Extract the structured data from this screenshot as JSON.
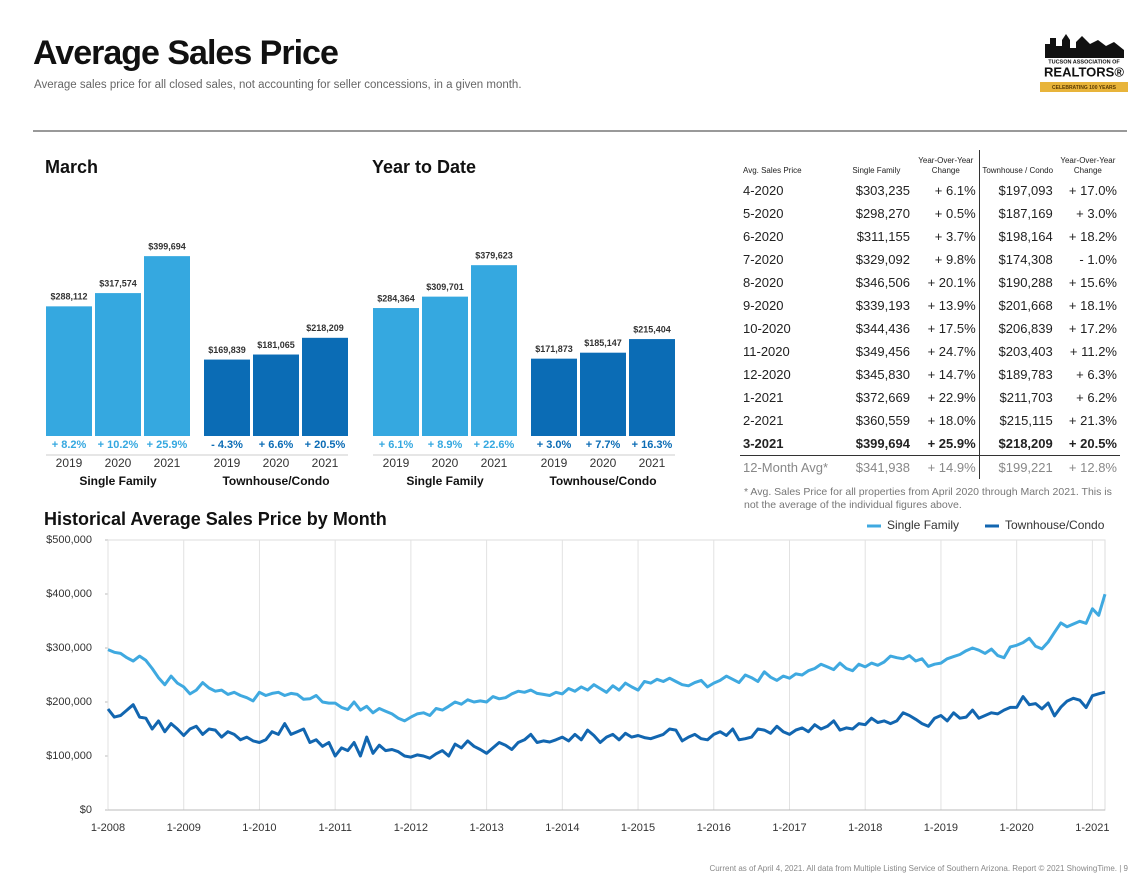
{
  "header": {
    "title": "Average Sales Price",
    "subtitle": "Average sales price for all closed sales, not accounting for seller concessions, in a given month."
  },
  "logo": {
    "line1": "TUCSON ASSOCIATION OF",
    "line2": "REALTORS®",
    "line3": "CELEBRATING 100 YEARS"
  },
  "chart_data": [
    {
      "type": "bar",
      "title": "March",
      "categories": [
        "2019",
        "2020",
        "2021"
      ],
      "ylim": [
        0,
        400000
      ],
      "series": [
        {
          "name": "Single Family",
          "color": "#35a8e0",
          "values": [
            288112,
            317574,
            399694
          ],
          "value_labels": [
            "$288,112",
            "$317,574",
            "$399,694"
          ],
          "change_labels": [
            "+ 8.2%",
            "+ 10.2%",
            "+ 25.9%"
          ]
        },
        {
          "name": "Townhouse/Condo",
          "color": "#0b6cb5",
          "values": [
            169839,
            181065,
            218209
          ],
          "value_labels": [
            "$169,839",
            "$181,065",
            "$218,209"
          ],
          "change_labels": [
            "- 4.3%",
            "+ 6.6%",
            "+ 20.5%"
          ]
        }
      ]
    },
    {
      "type": "bar",
      "title": "Year to Date",
      "categories": [
        "2019",
        "2020",
        "2021"
      ],
      "ylim": [
        0,
        400000
      ],
      "series": [
        {
          "name": "Single Family",
          "color": "#35a8e0",
          "values": [
            284364,
            309701,
            379623
          ],
          "value_labels": [
            "$284,364",
            "$309,701",
            "$379,623"
          ],
          "change_labels": [
            "+ 6.1%",
            "+ 8.9%",
            "+ 22.6%"
          ]
        },
        {
          "name": "Townhouse/Condo",
          "color": "#0b6cb5",
          "values": [
            171873,
            185147,
            215404
          ],
          "value_labels": [
            "$171,873",
            "$185,147",
            "$215,404"
          ],
          "change_labels": [
            "+ 3.0%",
            "+ 7.7%",
            "+ 16.3%"
          ]
        }
      ]
    },
    {
      "type": "line",
      "title": "Historical Average Sales Price by Month",
      "grid": "x",
      "legend": "top-right",
      "x": [
        "1-2008",
        "2-2008",
        "3-2008",
        "4-2008",
        "5-2008",
        "6-2008",
        "7-2008",
        "8-2008",
        "9-2008",
        "10-2008",
        "11-2008",
        "12-2008",
        "1-2009",
        "2-2009",
        "3-2009",
        "4-2009",
        "5-2009",
        "6-2009",
        "7-2009",
        "8-2009",
        "9-2009",
        "10-2009",
        "11-2009",
        "12-2009",
        "1-2010",
        "2-2010",
        "3-2010",
        "4-2010",
        "5-2010",
        "6-2010",
        "7-2010",
        "8-2010",
        "9-2010",
        "10-2010",
        "11-2010",
        "12-2010",
        "1-2011",
        "2-2011",
        "3-2011",
        "4-2011",
        "5-2011",
        "6-2011",
        "7-2011",
        "8-2011",
        "9-2011",
        "10-2011",
        "11-2011",
        "12-2011",
        "1-2012",
        "2-2012",
        "3-2012",
        "4-2012",
        "5-2012",
        "6-2012",
        "7-2012",
        "8-2012",
        "9-2012",
        "10-2012",
        "11-2012",
        "12-2012",
        "1-2013",
        "2-2013",
        "3-2013",
        "4-2013",
        "5-2013",
        "6-2013",
        "7-2013",
        "8-2013",
        "9-2013",
        "10-2013",
        "11-2013",
        "12-2013",
        "1-2014",
        "2-2014",
        "3-2014",
        "4-2014",
        "5-2014",
        "6-2014",
        "7-2014",
        "8-2014",
        "9-2014",
        "10-2014",
        "11-2014",
        "12-2014",
        "1-2015",
        "2-2015",
        "3-2015",
        "4-2015",
        "5-2015",
        "6-2015",
        "7-2015",
        "8-2015",
        "9-2015",
        "10-2015",
        "11-2015",
        "12-2015",
        "1-2016",
        "2-2016",
        "3-2016",
        "4-2016",
        "5-2016",
        "6-2016",
        "7-2016",
        "8-2016",
        "9-2016",
        "10-2016",
        "11-2016",
        "12-2016",
        "1-2017",
        "2-2017",
        "3-2017",
        "4-2017",
        "5-2017",
        "6-2017",
        "7-2017",
        "8-2017",
        "9-2017",
        "10-2017",
        "11-2017",
        "12-2017",
        "1-2018",
        "2-2018",
        "3-2018",
        "4-2018",
        "5-2018",
        "6-2018",
        "7-2018",
        "8-2018",
        "9-2018",
        "10-2018",
        "11-2018",
        "12-2018",
        "1-2019",
        "2-2019",
        "3-2019",
        "4-2019",
        "5-2019",
        "6-2019",
        "7-2019",
        "8-2019",
        "9-2019",
        "10-2019",
        "11-2019",
        "12-2019",
        "1-2020",
        "2-2020",
        "3-2020",
        "4-2020",
        "5-2020",
        "6-2020",
        "7-2020",
        "8-2020",
        "9-2020",
        "10-2020",
        "11-2020",
        "12-2020",
        "1-2021",
        "2-2021",
        "3-2021"
      ],
      "xticks": [
        "1-2008",
        "1-2009",
        "1-2010",
        "1-2011",
        "1-2012",
        "1-2013",
        "1-2014",
        "1-2015",
        "1-2016",
        "1-2017",
        "1-2018",
        "1-2019",
        "1-2020",
        "1-2021"
      ],
      "ylim": [
        0,
        500000
      ],
      "yticks": [
        {
          "value": 0,
          "label": "$0"
        },
        {
          "value": 100000,
          "label": "$100,000"
        },
        {
          "value": 200000,
          "label": "$200,000"
        },
        {
          "value": 300000,
          "label": "$300,000"
        },
        {
          "value": 400000,
          "label": "$400,000"
        },
        {
          "value": 500000,
          "label": "$500,000"
        }
      ],
      "series": [
        {
          "name": "Single Family",
          "color": "#3fa9e0",
          "values": [
            297000,
            292000,
            290000,
            282000,
            276000,
            285000,
            277000,
            262000,
            245000,
            232000,
            248000,
            235000,
            228000,
            215000,
            222000,
            236000,
            226000,
            220000,
            222000,
            214000,
            218000,
            212000,
            208000,
            202000,
            218000,
            212000,
            216000,
            218000,
            212000,
            216000,
            214000,
            205000,
            206000,
            212000,
            200000,
            198000,
            198000,
            190000,
            186000,
            200000,
            185000,
            192000,
            180000,
            188000,
            183000,
            178000,
            170000,
            165000,
            172000,
            178000,
            180000,
            175000,
            188000,
            185000,
            192000,
            200000,
            196000,
            204000,
            200000,
            202000,
            200000,
            210000,
            206000,
            208000,
            215000,
            220000,
            218000,
            222000,
            216000,
            214000,
            212000,
            218000,
            215000,
            225000,
            220000,
            228000,
            222000,
            232000,
            225000,
            218000,
            230000,
            222000,
            235000,
            228000,
            222000,
            238000,
            235000,
            242000,
            238000,
            244000,
            238000,
            232000,
            230000,
            236000,
            240000,
            228000,
            235000,
            240000,
            248000,
            242000,
            236000,
            250000,
            245000,
            238000,
            256000,
            246000,
            240000,
            248000,
            244000,
            252000,
            250000,
            258000,
            262000,
            270000,
            265000,
            260000,
            272000,
            262000,
            258000,
            270000,
            265000,
            272000,
            268000,
            274000,
            285000,
            282000,
            280000,
            286000,
            276000,
            280000,
            266000,
            270000,
            272000,
            280000,
            284000,
            288000,
            295000,
            300000,
            296000,
            290000,
            298000,
            286000,
            282000,
            302000,
            305000,
            310000,
            318000,
            303235,
            298270,
            311155,
            329092,
            346506,
            339193,
            344436,
            349456,
            345830,
            372669,
            360559,
            399694
          ]
        },
        {
          "name": "Townhouse/Condo",
          "color": "#1266b0",
          "values": [
            187000,
            172000,
            175000,
            185000,
            195000,
            172000,
            170000,
            150000,
            165000,
            145000,
            160000,
            150000,
            138000,
            150000,
            155000,
            140000,
            150000,
            148000,
            135000,
            145000,
            140000,
            130000,
            135000,
            128000,
            125000,
            130000,
            145000,
            140000,
            160000,
            140000,
            145000,
            150000,
            125000,
            130000,
            118000,
            125000,
            100000,
            115000,
            110000,
            125000,
            100000,
            135000,
            105000,
            120000,
            110000,
            112000,
            108000,
            100000,
            98000,
            102000,
            100000,
            96000,
            104000,
            110000,
            100000,
            122000,
            115000,
            128000,
            118000,
            112000,
            105000,
            115000,
            125000,
            120000,
            112000,
            125000,
            130000,
            140000,
            125000,
            128000,
            126000,
            130000,
            135000,
            128000,
            140000,
            130000,
            148000,
            138000,
            125000,
            135000,
            140000,
            130000,
            142000,
            135000,
            138000,
            134000,
            132000,
            136000,
            140000,
            150000,
            148000,
            128000,
            135000,
            140000,
            132000,
            130000,
            140000,
            145000,
            138000,
            150000,
            130000,
            132000,
            135000,
            150000,
            148000,
            142000,
            155000,
            145000,
            140000,
            148000,
            152000,
            145000,
            158000,
            150000,
            155000,
            165000,
            148000,
            152000,
            150000,
            160000,
            158000,
            170000,
            162000,
            165000,
            160000,
            165000,
            180000,
            175000,
            168000,
            160000,
            155000,
            170000,
            175000,
            165000,
            180000,
            170000,
            172000,
            185000,
            170000,
            175000,
            180000,
            178000,
            185000,
            190000,
            190000,
            210000,
            195000,
            197093,
            187169,
            198164,
            174308,
            190288,
            201668,
            206839,
            203403,
            189783,
            211703,
            215115,
            218209
          ]
        }
      ]
    }
  ],
  "table": {
    "header": [
      "Avg. Sales Price",
      "Single Family",
      "Year-Over-Year Change",
      "Townhouse / Condo",
      "Year-Over-Year Change"
    ],
    "rows": [
      [
        "4-2020",
        "$303,235",
        "+ 6.1%",
        "$197,093",
        "+ 17.0%"
      ],
      [
        "5-2020",
        "$298,270",
        "+ 0.5%",
        "$187,169",
        "+ 3.0%"
      ],
      [
        "6-2020",
        "$311,155",
        "+ 3.7%",
        "$198,164",
        "+ 18.2%"
      ],
      [
        "7-2020",
        "$329,092",
        "+ 9.8%",
        "$174,308",
        "- 1.0%"
      ],
      [
        "8-2020",
        "$346,506",
        "+ 20.1%",
        "$190,288",
        "+ 15.6%"
      ],
      [
        "9-2020",
        "$339,193",
        "+ 13.9%",
        "$201,668",
        "+ 18.1%"
      ],
      [
        "10-2020",
        "$344,436",
        "+ 17.5%",
        "$206,839",
        "+ 17.2%"
      ],
      [
        "11-2020",
        "$349,456",
        "+ 24.7%",
        "$203,403",
        "+ 11.2%"
      ],
      [
        "12-2020",
        "$345,830",
        "+ 14.7%",
        "$189,783",
        "+ 6.3%"
      ],
      [
        "1-2021",
        "$372,669",
        "+ 22.9%",
        "$211,703",
        "+ 6.2%"
      ],
      [
        "2-2021",
        "$360,559",
        "+ 18.0%",
        "$215,115",
        "+ 21.3%"
      ],
      [
        "3-2021",
        "$399,694",
        "+ 25.9%",
        "$218,209",
        "+ 20.5%"
      ],
      [
        "12-Month Avg*",
        "$341,938",
        "+ 14.9%",
        "$199,221",
        "+ 12.8%"
      ]
    ],
    "footnote": "* Avg. Sales Price for all properties from April 2020 through March 2021. This is not the average of the individual figures above."
  },
  "footer": "Current as of April 4, 2021. All data from Multiple Listing Service of Southern Arizona. Report © 2021 ShowingTime. | 9"
}
